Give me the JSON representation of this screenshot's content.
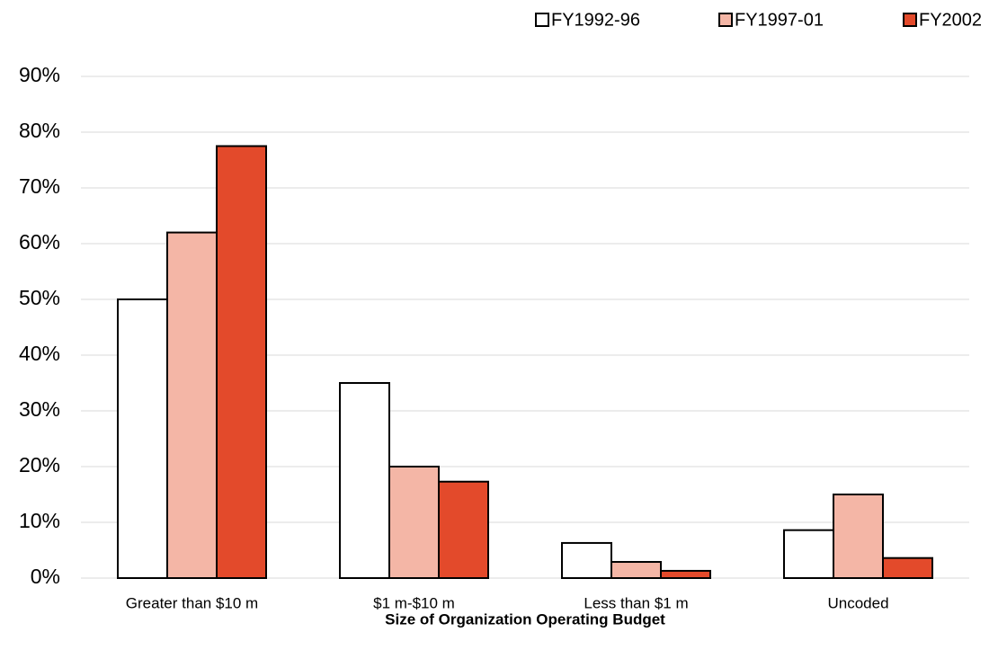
{
  "chart_data": {
    "type": "bar",
    "x_label": "Size of Organization Operating Budget",
    "categories": [
      "Greater than $10 m",
      "$1 m-$10 m",
      "Less than $1 m",
      "Uncoded"
    ],
    "series": [
      {
        "name": "FY1992-96",
        "color": "#ffffff",
        "values": [
          50,
          35,
          6.3,
          8.6
        ]
      },
      {
        "name": "FY1997-01",
        "color": "#f4b6a6",
        "values": [
          62,
          20,
          2.9,
          15
        ]
      },
      {
        "name": "FY2002",
        "color": "#e34a2b",
        "values": [
          77.5,
          17.3,
          1.3,
          3.6
        ]
      }
    ],
    "ylim": [
      0,
      90
    ],
    "yticks": [
      {
        "value": 0,
        "label": "0%"
      },
      {
        "value": 10,
        "label": "10%"
      },
      {
        "value": 20,
        "label": "20%"
      },
      {
        "value": 30,
        "label": "30%"
      },
      {
        "value": 40,
        "label": "40%"
      },
      {
        "value": 50,
        "label": "50%"
      },
      {
        "value": 60,
        "label": "60%"
      },
      {
        "value": 70,
        "label": "70%"
      },
      {
        "value": 80,
        "label": "80%"
      },
      {
        "value": 90,
        "label": "90%"
      }
    ],
    "grid": true,
    "legend": "top-right"
  }
}
